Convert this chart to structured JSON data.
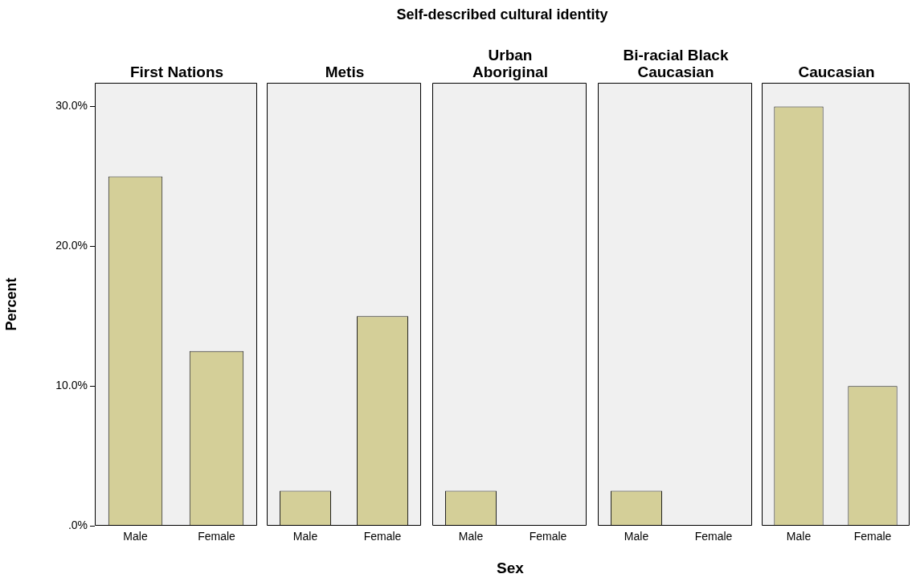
{
  "chart_data": [
    {
      "type": "bar",
      "subtitle": "First Nations",
      "ylabel": "Percent",
      "categories": [
        "Male",
        "Female"
      ],
      "values": [
        25,
        12.5
      ],
      "color": "#d4cf98",
      "ylim": [
        0,
        31.7
      ],
      "yticks": [
        {
          "value": 0,
          "label": ".0%"
        },
        {
          "value": 10,
          "label": "10.0%"
        },
        {
          "value": 20,
          "label": "20.0%"
        },
        {
          "value": 30,
          "label": "30.0%"
        }
      ]
    },
    {
      "type": "bar",
      "subtitle": "Metis",
      "categories": [
        "Male",
        "Female"
      ],
      "values": [
        2.5,
        15
      ],
      "color": "#d4cf98",
      "ylim": [
        0,
        31.7
      ],
      "tick_labels": "x"
    },
    {
      "type": "bar",
      "title": "Self-described cultural identity",
      "subtitle": "Urban Aboriginal",
      "xlabel": "Sex",
      "categories": [
        "Male",
        "Female"
      ],
      "values": [
        2.5,
        0
      ],
      "color": "#d4cf98",
      "ylim": [
        0,
        31.7
      ],
      "tick_labels": "x"
    },
    {
      "type": "bar",
      "subtitle": "Bi-racial Black Caucasian",
      "categories": [
        "Male",
        "Female"
      ],
      "values": [
        2.5,
        0
      ],
      "color": "#d4cf98",
      "ylim": [
        0,
        31.7
      ],
      "tick_labels": "x"
    },
    {
      "type": "bar",
      "subtitle": "Caucasian",
      "categories": [
        "Male",
        "Female"
      ],
      "values": [
        30,
        10
      ],
      "color": "#d4cf98",
      "ylim": [
        0,
        31.7
      ],
      "tick_labels": "x"
    }
  ]
}
